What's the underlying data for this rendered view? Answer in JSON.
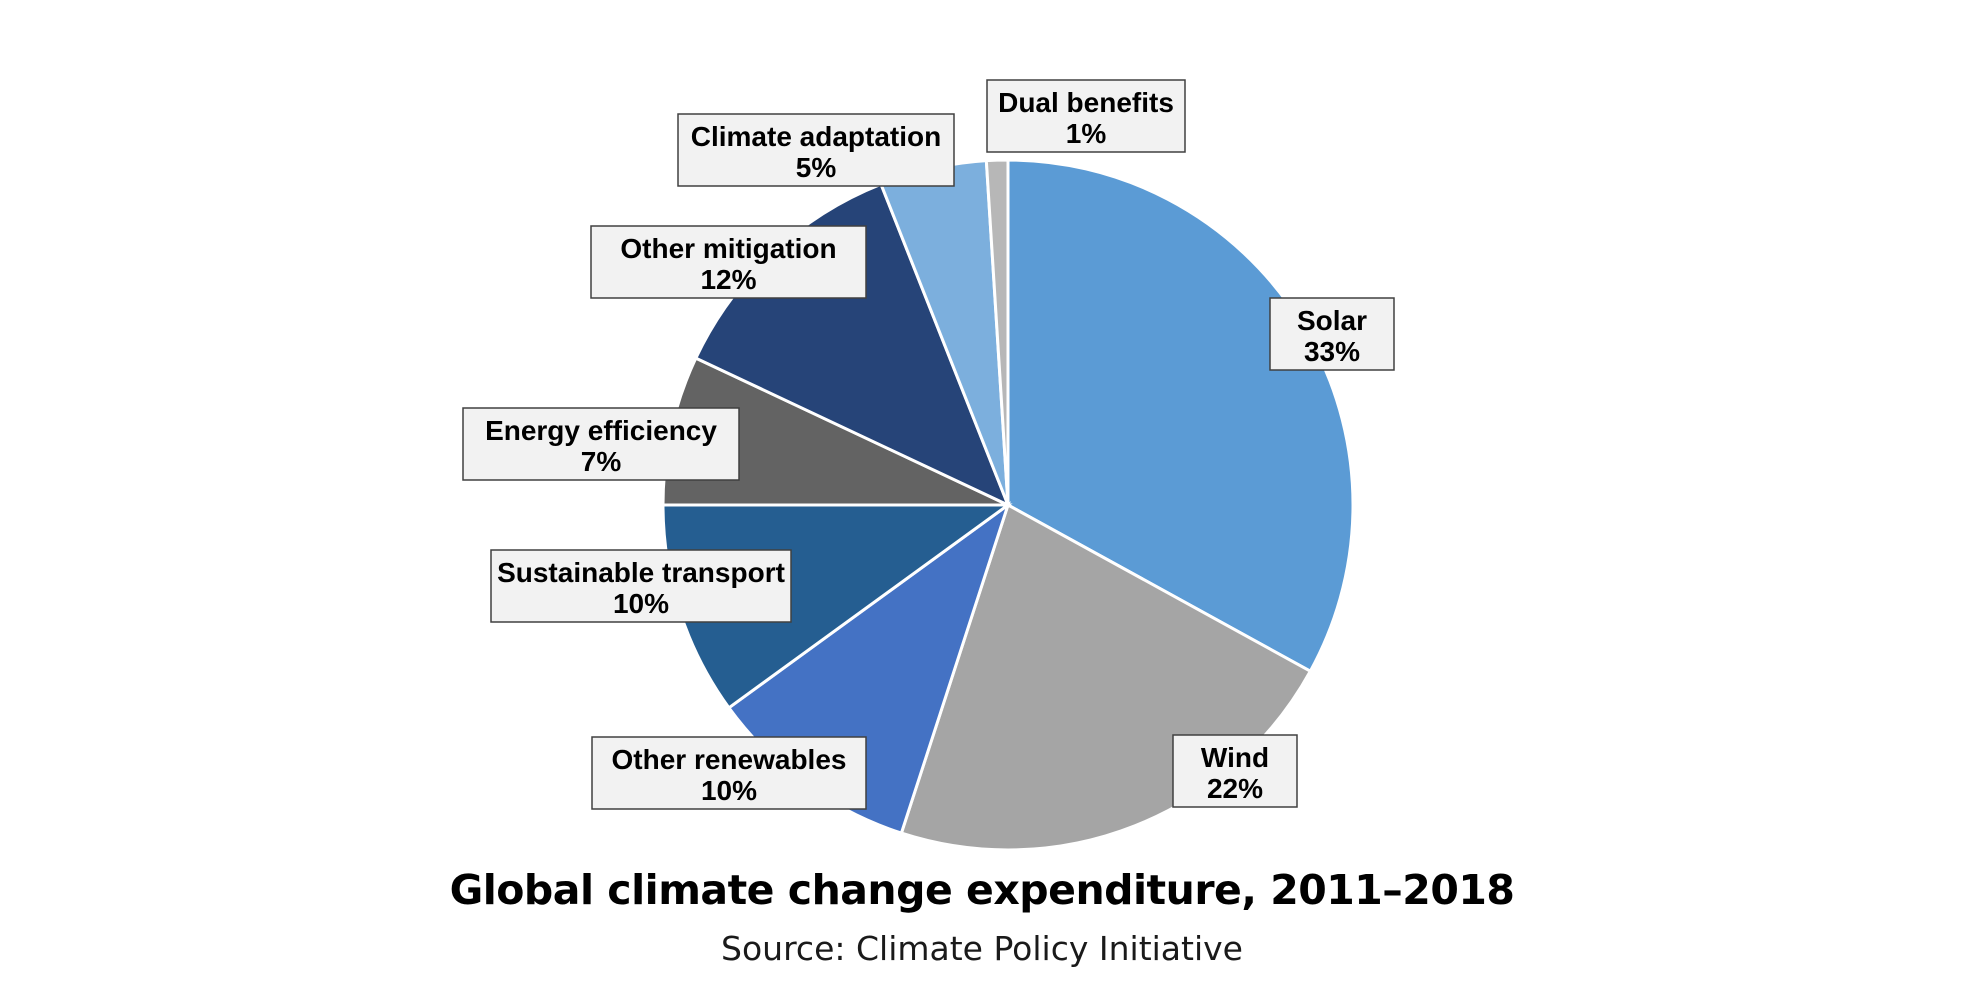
{
  "chart_data": {
    "type": "pie",
    "title": "Global climate change expenditure, 2011–2018",
    "subtitle": "Source: Climate Policy Initiative",
    "unit": "%",
    "start": "top, clockwise",
    "slices": [
      {
        "name": "Solar",
        "value": 33,
        "label": "33%",
        "color": "#5b9bd5"
      },
      {
        "name": "Wind",
        "value": 22,
        "label": "22%",
        "color": "#a5a5a5"
      },
      {
        "name": "Other renewables",
        "value": 10,
        "label": "10%",
        "color": "#4472c4"
      },
      {
        "name": "Sustainable transport",
        "value": 10,
        "label": "10%",
        "color": "#255e91"
      },
      {
        "name": "Energy efficiency",
        "value": 7,
        "label": "7%",
        "color": "#636363"
      },
      {
        "name": "Other mitigation",
        "value": 12,
        "label": "12%",
        "color": "#264478"
      },
      {
        "name": "Climate adaptation",
        "value": 5,
        "label": "5%",
        "color": "#7cafdd"
      },
      {
        "name": "Dual benefits",
        "value": 1,
        "label": "1%",
        "color": "#b7b7b7"
      }
    ]
  }
}
